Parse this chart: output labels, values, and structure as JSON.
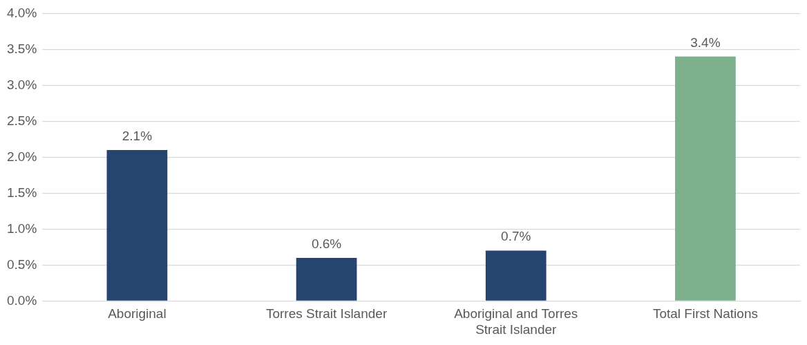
{
  "chart_data": {
    "type": "bar",
    "categories": [
      "Aboriginal",
      "Torres Strait Islander",
      "Aboriginal and Torres Strait Islander",
      "Total First Nations"
    ],
    "values": [
      2.1,
      0.6,
      0.7,
      3.4
    ],
    "colors": [
      "#264470",
      "#264470",
      "#264470",
      "#7eb08e"
    ],
    "value_labels": [
      "2.1%",
      "0.6%",
      "0.7%",
      "3.4%"
    ],
    "ylim": [
      0,
      4
    ],
    "yticks": [
      {
        "value": 0,
        "label": "0.0%"
      },
      {
        "value": 0.5,
        "label": "0.5%"
      },
      {
        "value": 1,
        "label": "1.0%"
      },
      {
        "value": 1.5,
        "label": "1.5%"
      },
      {
        "value": 2,
        "label": "2.0%"
      },
      {
        "value": 2.5,
        "label": "2.5%"
      },
      {
        "value": 3,
        "label": "3.0%"
      },
      {
        "value": 3.5,
        "label": "3.5%"
      },
      {
        "value": 4,
        "label": "4.0%"
      }
    ],
    "grid": "y"
  }
}
